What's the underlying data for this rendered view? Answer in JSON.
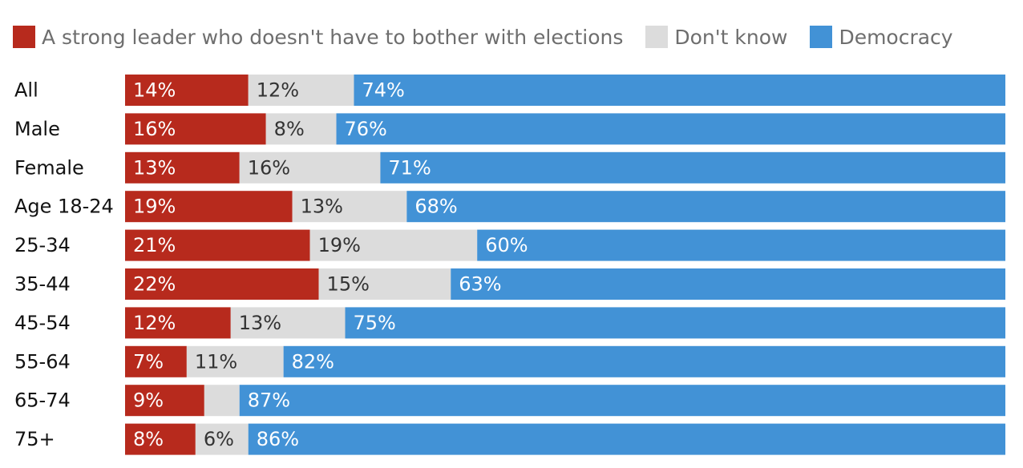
{
  "chart_data": {
    "type": "bar",
    "orientation": "horizontal",
    "stacked": true,
    "percent_stacked": true,
    "legend_position": "top",
    "categories": [
      "All",
      "Male",
      "Female",
      "Age 18-24",
      "25-34",
      "35-44",
      "45-54",
      "55-64",
      "65-74",
      "75+"
    ],
    "series": [
      {
        "name": "A strong leader who doesn't have to bother with elections",
        "color": "#b72a1d",
        "label_color": "#ffffff",
        "values": [
          14,
          16,
          13,
          19,
          21,
          22,
          12,
          7,
          9,
          8
        ],
        "labels": [
          "14%",
          "16%",
          "13%",
          "19%",
          "21%",
          "22%",
          "12%",
          "7%",
          "9%",
          "8%"
        ]
      },
      {
        "name": "Don't know",
        "color": "#dcdcdc",
        "label_color": "#333333",
        "values": [
          12,
          8,
          16,
          13,
          19,
          15,
          13,
          11,
          4,
          6
        ],
        "labels": [
          "12%",
          "8%",
          "16%",
          "13%",
          "19%",
          "15%",
          "13%",
          "11%",
          "",
          "6%"
        ]
      },
      {
        "name": "Democracy",
        "color": "#4292d6",
        "label_color": "#ffffff",
        "values": [
          74,
          76,
          71,
          68,
          60,
          63,
          75,
          82,
          87,
          86
        ],
        "labels": [
          "74%",
          "76%",
          "71%",
          "68%",
          "60%",
          "63%",
          "75%",
          "82%",
          "87%",
          "86%"
        ]
      }
    ]
  }
}
